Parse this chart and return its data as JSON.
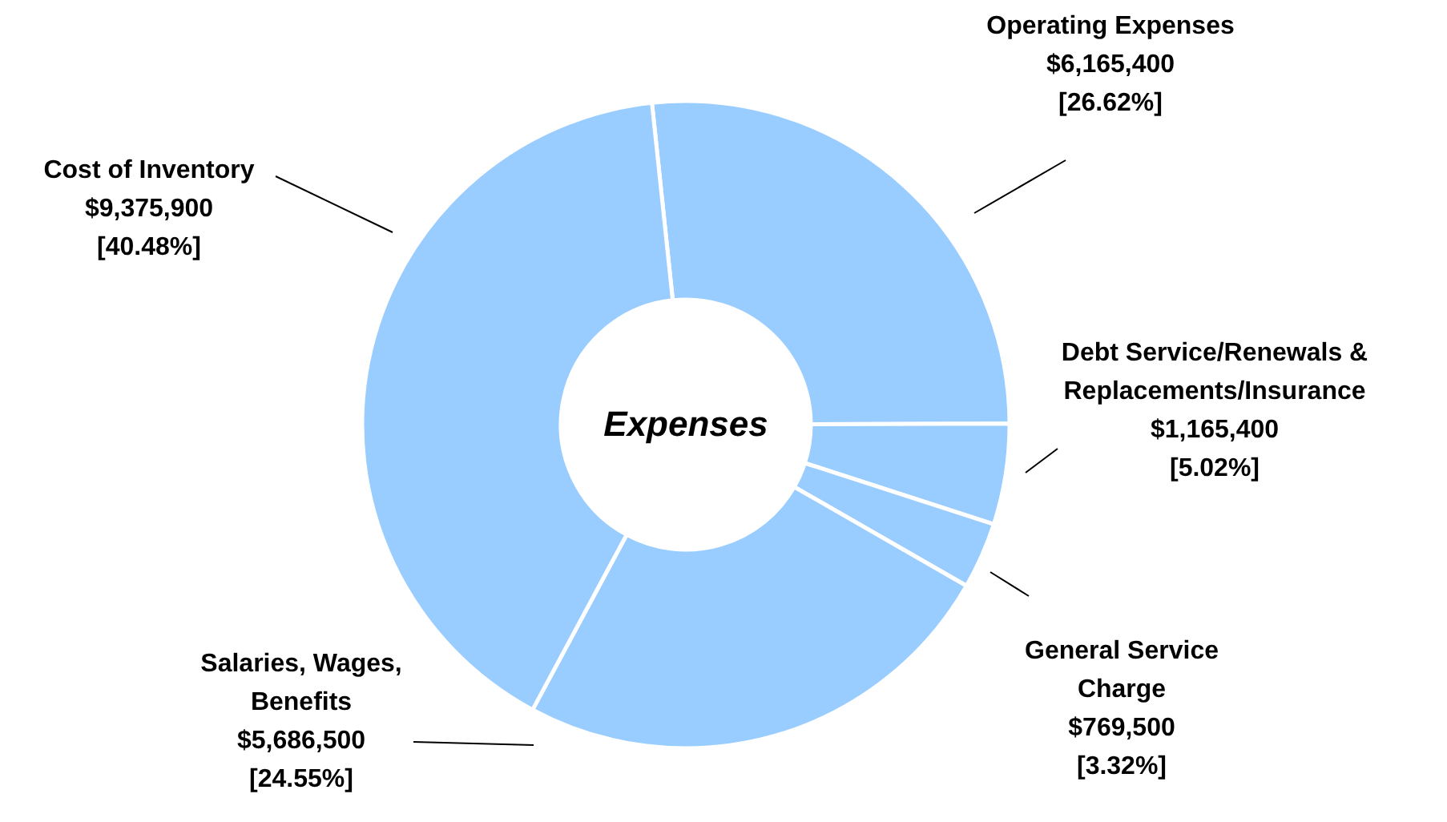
{
  "chart_data": {
    "type": "donut",
    "title": "Expenses",
    "categories": [
      "Operating Expenses",
      "Debt Service/Renewals & Replacements/Insurance",
      "General Service Charge",
      "Salaries, Wages, Benefits",
      "Cost of Inventory"
    ],
    "values": [
      6165400,
      1165400,
      769500,
      5686500,
      9375900
    ],
    "colors": [
      "#99ccff",
      "#99ccff",
      "#99ccff",
      "#99ccff",
      "#99ccff"
    ],
    "value_labels": [
      "$6,165,400\n[26.62%]",
      "$1,165,400\n[5.02%]",
      "$769,500\n[3.32%]",
      "$5,686,500\n[24.55%]",
      "$9,375,900\n[40.48%]"
    ]
  }
}
